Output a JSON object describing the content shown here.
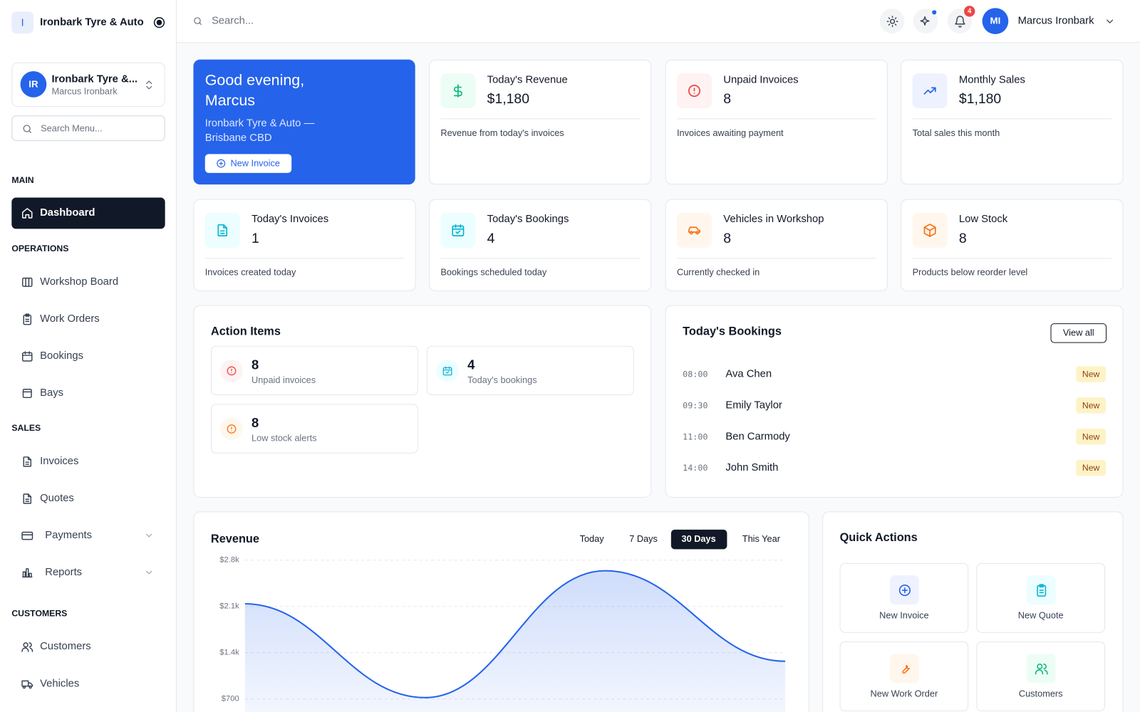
{
  "brand": {
    "initial": "I",
    "name": "Ironbark Tyre & Auto"
  },
  "org_switcher": {
    "initials": "IR",
    "name": "Ironbark Tyre &...",
    "user": "Marcus Ironbark"
  },
  "menu_search_placeholder": "Search Menu...",
  "nav": [
    {
      "section": "MAIN",
      "items": [
        {
          "label": "Dashboard",
          "active": true
        }
      ]
    },
    {
      "section": "OPERATIONS",
      "items": [
        {
          "label": "Workshop Board"
        },
        {
          "label": "Work Orders"
        },
        {
          "label": "Bookings"
        },
        {
          "label": "Bays"
        }
      ]
    },
    {
      "section": "SALES",
      "items": [
        {
          "label": "Invoices"
        },
        {
          "label": "Quotes"
        },
        {
          "label": "Payments",
          "has_submenu": true
        },
        {
          "label": "Reports",
          "has_submenu": true
        }
      ]
    },
    {
      "section": "CUSTOMERS",
      "items": [
        {
          "label": "Customers"
        },
        {
          "label": "Vehicles"
        }
      ]
    }
  ],
  "header": {
    "search_placeholder": "Search...",
    "notification_count": 4,
    "user_initials": "MI",
    "user_name": "Marcus Ironbark"
  },
  "welcome": {
    "greeting": "Good evening, Marcus",
    "subtitle": "Ironbark Tyre & Auto — Brisbane CBD",
    "button": "New Invoice"
  },
  "stats": [
    {
      "label": "Today's Revenue",
      "value": "$1,180",
      "note": "Revenue from today's invoices"
    },
    {
      "label": "Unpaid Invoices",
      "value": 8,
      "note": "Invoices awaiting payment"
    },
    {
      "label": "Monthly Sales",
      "value": "$1,180",
      "note": "Total sales this month"
    },
    {
      "label": "Today's Invoices",
      "value": 1,
      "note": "Invoices created today"
    },
    {
      "label": "Today's Bookings",
      "value": 4,
      "note": "Bookings scheduled today"
    },
    {
      "label": "Vehicles in Workshop",
      "value": 8,
      "note": "Currently checked in"
    },
    {
      "label": "Low Stock",
      "value": 8,
      "note": "Products below reorder level"
    }
  ],
  "action_items": {
    "title": "Action Items",
    "items": [
      {
        "count": 8,
        "label": "Unpaid invoices"
      },
      {
        "count": 4,
        "label": "Today's bookings"
      },
      {
        "count": 8,
        "label": "Low stock alerts"
      }
    ]
  },
  "bookings": {
    "title": "Today's Bookings",
    "button": "View all",
    "items": [
      {
        "time": "08:00",
        "name": "Ava Chen",
        "status": "New"
      },
      {
        "time": "09:30",
        "name": "Emily Taylor",
        "status": "New"
      },
      {
        "time": "11:00",
        "name": "Ben Carmody",
        "status": "New"
      },
      {
        "time": "14:00",
        "name": "John Smith",
        "status": "New"
      }
    ]
  },
  "revenue_filters": {
    "ranges": [
      "Today",
      "7 Days",
      "30 Days",
      "This Year"
    ],
    "active_index": 2
  },
  "chart_data": {
    "type": "line",
    "title": "Revenue",
    "categories": [
      null,
      null,
      null,
      null
    ],
    "values": [
      2140,
      720,
      2640,
      1270
    ],
    "color": "#2563eb",
    "ylim": [
      0,
      2800
    ],
    "yticks": [
      {
        "value": 700,
        "label": "$700"
      },
      {
        "value": 1400,
        "label": "$1.4k"
      },
      {
        "value": 2100,
        "label": "$2.1k"
      },
      {
        "value": 2800,
        "label": "$2.8k"
      }
    ],
    "grid": true
  },
  "quick_actions": {
    "title": "Quick Actions",
    "items": [
      "New Invoice",
      "New Quote",
      "New Work Order",
      "Customers"
    ]
  }
}
